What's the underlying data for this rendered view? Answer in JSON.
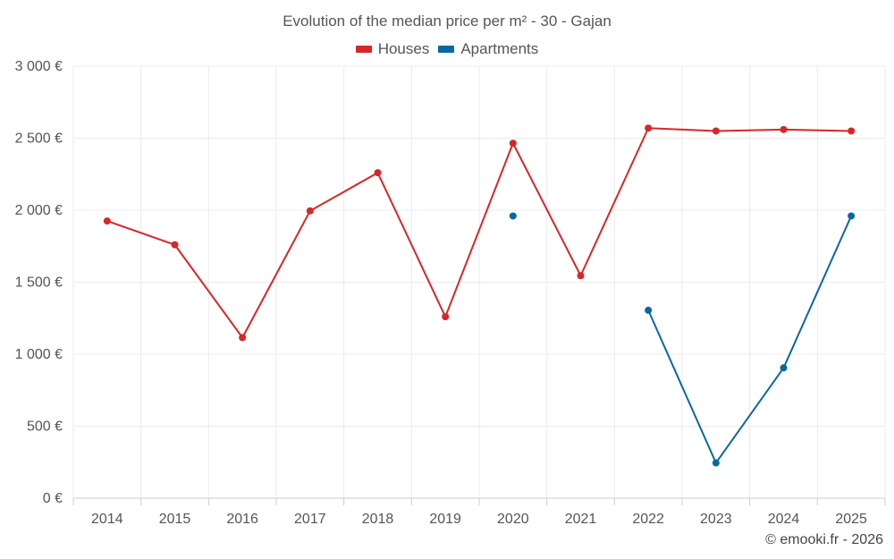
{
  "chart_data": {
    "type": "line",
    "title": "Evolution of the median price per m² - 30 - Gajan",
    "categories": [
      "2014",
      "2015",
      "2016",
      "2017",
      "2018",
      "2019",
      "2020",
      "2021",
      "2022",
      "2023",
      "2024",
      "2025"
    ],
    "y_ticks": [
      "0 €",
      "500 €",
      "1 000 €",
      "1 500 €",
      "2 000 €",
      "2 500 €",
      "3 000 €"
    ],
    "ylim": [
      0,
      3000
    ],
    "y_tick_values": [
      0,
      500,
      1000,
      1500,
      2000,
      2500,
      3000
    ],
    "grid": true,
    "legend_position": "top-center",
    "series": [
      {
        "name": "Houses",
        "color": "#d62728",
        "values": [
          1925,
          1760,
          1115,
          1995,
          2260,
          1260,
          2465,
          1545,
          2570,
          2550,
          2560,
          2550
        ]
      },
      {
        "name": "Apartments",
        "color": "#0868a0",
        "values": [
          null,
          null,
          null,
          null,
          null,
          null,
          1960,
          null,
          1305,
          245,
          905,
          1960
        ]
      }
    ]
  },
  "footer": {
    "credit": "© emooki.fr - 2026"
  }
}
